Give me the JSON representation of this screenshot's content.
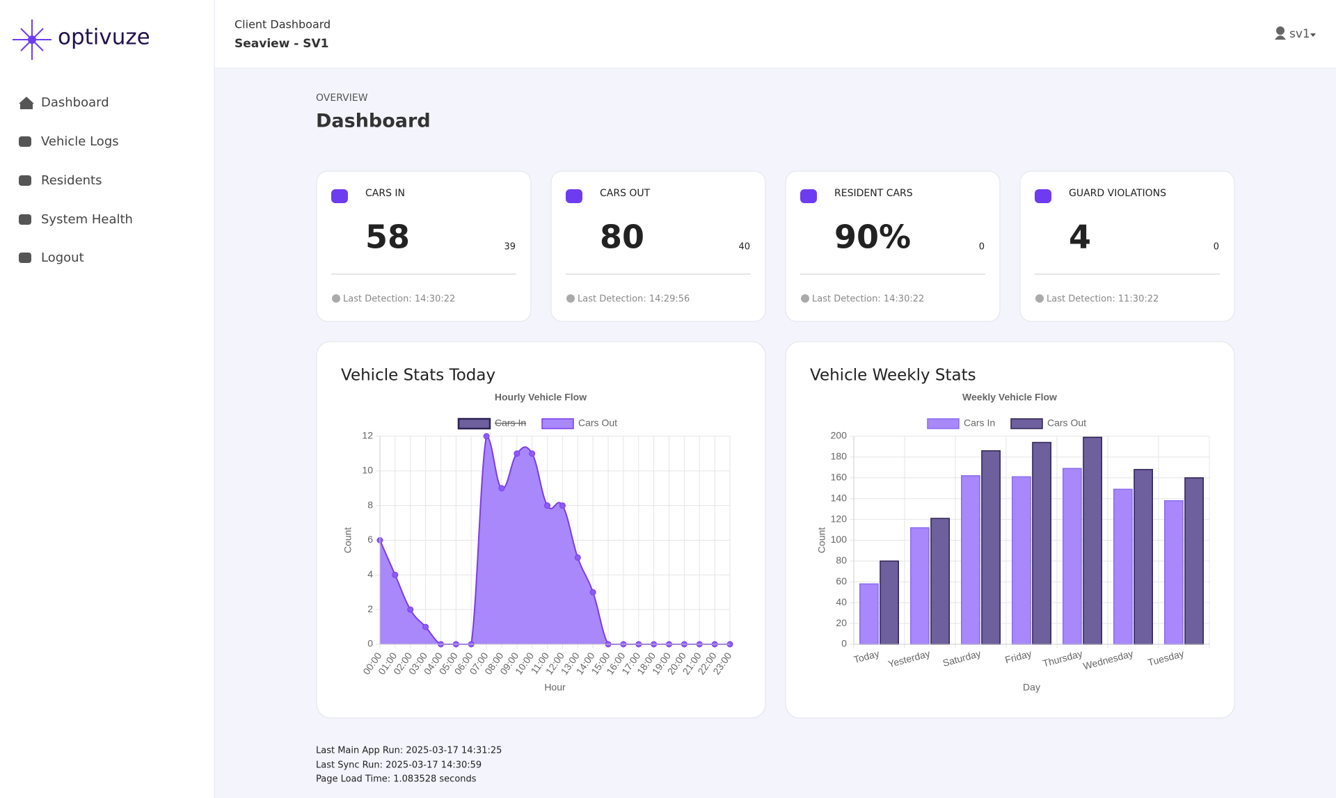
{
  "brand": "optivuze",
  "nav": [
    "Dashboard",
    "Vehicle Logs",
    "Residents",
    "System Health",
    "Logout"
  ],
  "header": {
    "subtitle": "Client Dashboard",
    "title": "Seaview - SV1",
    "user": "sv1"
  },
  "overview": {
    "eyebrow": "OVERVIEW",
    "title": "Dashboard"
  },
  "cards": [
    {
      "label": "CARS IN",
      "value": 58,
      "side": 39,
      "detection": "Last Detection: 14:30:22"
    },
    {
      "label": "CARS OUT",
      "value": 80,
      "side": 40,
      "detection": "Last Detection: 14:29:56"
    },
    {
      "label": "RESIDENT CARS",
      "value": "90%",
      "side": 0,
      "detection": "Last Detection: 14:30:22"
    },
    {
      "label": "GUARD VIOLATIONS",
      "value": 4,
      "side": 0,
      "detection": "Last Detection: 11:30:22"
    }
  ],
  "panels": [
    "Vehicle Stats Today",
    "Vehicle Weekly Stats"
  ],
  "chart_data": [
    {
      "type": "line",
      "title": "Hourly Vehicle Flow",
      "x_label": "Hour",
      "y_label": "Count",
      "categories": [
        "00:00",
        "01:00",
        "02:00",
        "03:00",
        "04:00",
        "05:00",
        "06:00",
        "07:00",
        "08:00",
        "09:00",
        "10:00",
        "11:00",
        "12:00",
        "13:00",
        "14:00",
        "15:00",
        "16:00",
        "17:00",
        "18:00",
        "19:00",
        "20:00",
        "21:00",
        "22:00",
        "23:00"
      ],
      "series": [
        {
          "name": "Cars In",
          "color": "#6e5f9d",
          "border_color": "#2e2255",
          "hidden": true
        },
        {
          "name": "Cars Out",
          "color": "#a888fa",
          "border_color": "#7c3aed",
          "values": [
            6,
            4,
            2,
            1,
            0,
            0,
            0,
            12,
            9,
            11,
            11,
            8,
            8,
            5,
            3,
            0,
            0,
            0,
            0,
            0,
            0,
            0,
            0,
            0
          ]
        }
      ],
      "ylim": [
        0,
        12
      ],
      "yticks": [
        0,
        2,
        4,
        6,
        8,
        10,
        12
      ],
      "grid": true,
      "legend": "top"
    },
    {
      "type": "bar",
      "title": "Weekly Vehicle Flow",
      "x_label": "Day",
      "y_label": "Count",
      "categories": [
        "Today",
        "Yesterday",
        "Saturday",
        "Friday",
        "Thursday",
        "Wednesday",
        "Tuesday"
      ],
      "series": [
        {
          "name": "Cars In",
          "color": "#a888fa",
          "border_color": "#8b6cf0",
          "values": [
            58,
            112,
            162,
            161,
            169,
            149,
            138
          ]
        },
        {
          "name": "Cars Out",
          "color": "#6e5f9d",
          "border_color": "#2e2255",
          "values": [
            80,
            121,
            186,
            194,
            199,
            168,
            160
          ]
        }
      ],
      "ylim": [
        0,
        200
      ],
      "yticks": [
        0,
        20,
        40,
        60,
        80,
        100,
        120,
        140,
        160,
        180,
        200
      ],
      "grid": true,
      "legend": "top"
    }
  ],
  "footer": [
    "Last Main App Run: 2025-03-17 14:31:25",
    "Last Sync Run: 2025-03-17 14:30:59",
    "Page Load Time: 1.083528 seconds"
  ]
}
